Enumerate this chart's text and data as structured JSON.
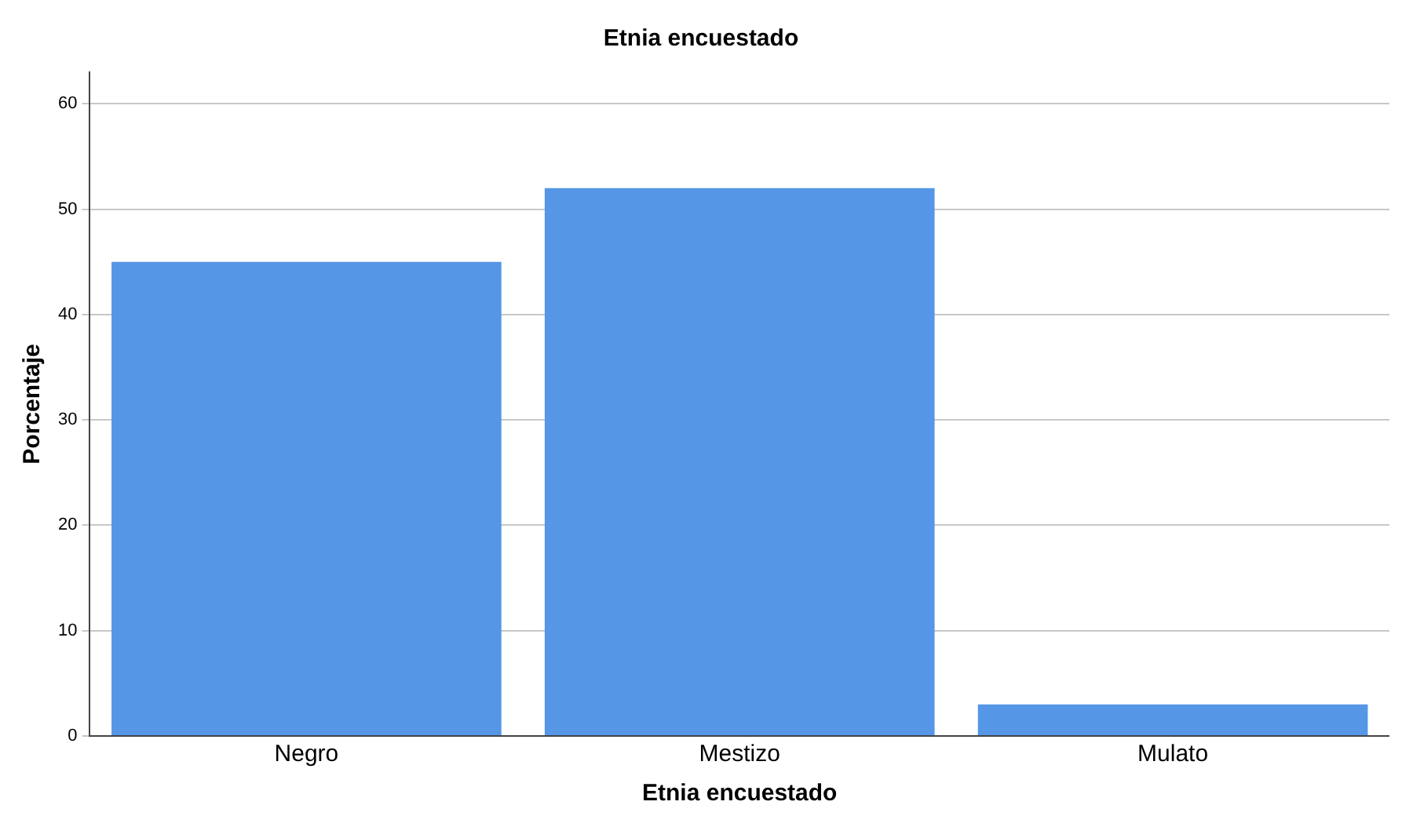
{
  "chart_data": {
    "type": "bar",
    "title": "Etnia encuestado",
    "xlabel": "Etnia encuestado",
    "ylabel": "Porcentaje",
    "categories": [
      "Negro",
      "Mestizo",
      "Mulato"
    ],
    "values": [
      45,
      52,
      3
    ],
    "color": "#5596e6",
    "ylim": [
      0,
      63
    ],
    "yticks": [
      0,
      10,
      20,
      30,
      40,
      50,
      60
    ],
    "grid": "y"
  }
}
